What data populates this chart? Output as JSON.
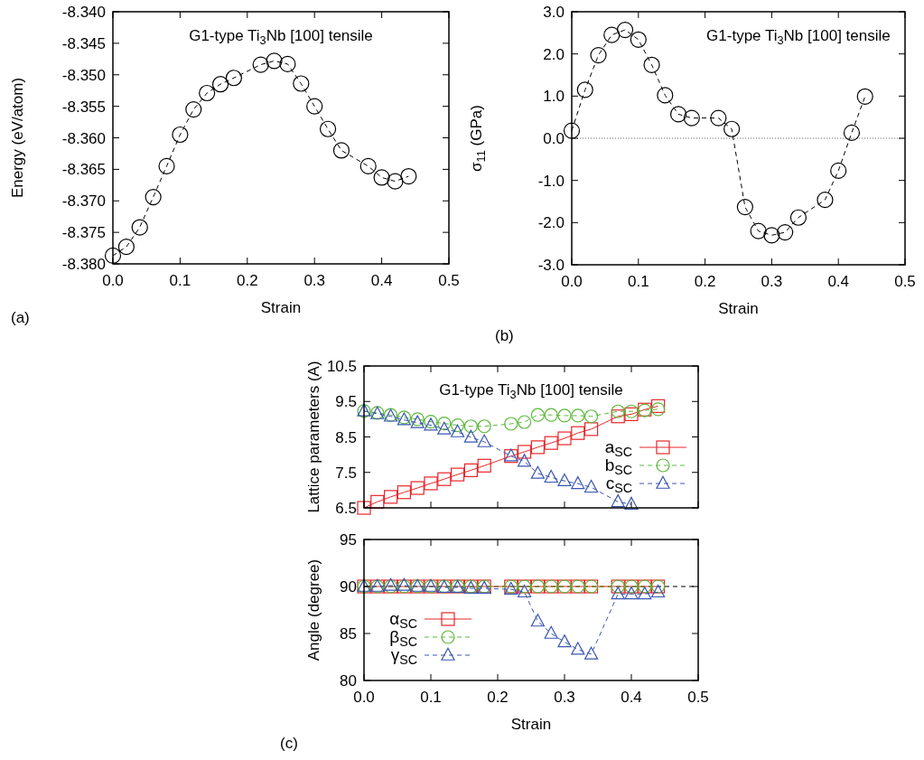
{
  "chart_data": [
    {
      "type": "line",
      "title": "G1-type Ti$_{3}$Nb [100] tensile",
      "xlabel": "Strain",
      "ylabel": "Energy (eV/atom)",
      "annotations": [
        "(a)"
      ],
      "marker": "circle",
      "line_style": "dashed",
      "xlim": [
        0,
        0.5
      ],
      "xticks": [
        {
          "value": 0,
          "label": "0.0"
        },
        0.1,
        0.2,
        0.3,
        0.4,
        0.5
      ],
      "ylim": [
        -8.38,
        -8.34
      ],
      "yticks": [
        {
          "value": -8.38,
          "label": "-8.380"
        },
        {
          "value": -8.375,
          "label": "-8.375"
        },
        {
          "value": -8.37,
          "label": "-8.370"
        },
        {
          "value": -8.365,
          "label": "-8.365"
        },
        {
          "value": -8.36,
          "label": "-8.360"
        },
        {
          "value": -8.355,
          "label": "-8.355"
        },
        {
          "value": -8.35,
          "label": "-8.350"
        },
        {
          "value": -8.345,
          "label": "-8.345"
        },
        {
          "value": -8.34,
          "label": "-8.340"
        }
      ],
      "x": [
        0,
        0.02,
        0.04,
        0.06,
        0.08,
        0.1,
        0.12,
        0.14,
        0.16,
        0.18,
        0.22,
        0.24,
        0.26,
        0.28,
        0.3,
        0.32,
        0.34,
        0.38,
        0.4,
        0.42,
        0.44
      ],
      "series": [
        {
          "color": "#000000",
          "values": [
            -8.3787,
            -8.3773,
            -8.3742,
            -8.3694,
            -8.3645,
            -8.3595,
            -8.3555,
            -8.3529,
            -8.3515,
            -8.3505,
            -8.3484,
            -8.3478,
            -8.3483,
            -8.3514,
            -8.355,
            -8.3586,
            -8.362,
            -8.3645,
            -8.3663,
            -8.3669,
            -8.3661
          ]
        }
      ]
    },
    {
      "type": "line",
      "title": "G1-type Ti$_{3}$Nb [100] tensile",
      "xlabel": "Strain",
      "ylabel": "σ$_{11}$ (GPa)",
      "annotations": [
        "(b)"
      ],
      "marker": "circle",
      "line_style": "dashed",
      "xlim": [
        0,
        0.5
      ],
      "xticks": [
        {
          "value": 0,
          "label": "0.0"
        },
        0.1,
        0.2,
        0.3,
        0.4,
        0.5
      ],
      "ylim": [
        -3,
        3
      ],
      "yticks": [
        {
          "value": -3,
          "label": "-3.0"
        },
        {
          "value": -2,
          "label": "-2.0"
        },
        {
          "value": -1,
          "label": "-1.0"
        },
        {
          "value": 0,
          "label": "0.0"
        },
        {
          "value": 1,
          "label": "1.0"
        },
        {
          "value": 2,
          "label": "2.0"
        },
        {
          "value": 3,
          "label": "3.0"
        }
      ],
      "ref_lines": [
        {
          "axis": "y",
          "value": 0,
          "color": "#000000",
          "line_style": "dotted"
        }
      ],
      "x": [
        0,
        0.02,
        0.04,
        0.06,
        0.08,
        0.1,
        0.12,
        0.14,
        0.16,
        0.18,
        0.22,
        0.24,
        0.26,
        0.28,
        0.3,
        0.32,
        0.34,
        0.38,
        0.4,
        0.42,
        0.44
      ],
      "series": [
        {
          "color": "#000000",
          "values": [
            0.18,
            1.15,
            1.97,
            2.45,
            2.57,
            2.34,
            1.74,
            1.02,
            0.57,
            0.48,
            0.48,
            0.22,
            -1.63,
            -2.2,
            -2.3,
            -2.23,
            -1.88,
            -1.46,
            -0.77,
            0.13,
            0.99
          ]
        }
      ]
    },
    {
      "type": "line",
      "title": "G1-type Ti$_{3}$Nb [100] tensile",
      "ylabel": "Lattice parameters (A)",
      "legend": "right",
      "tick_labels": "y",
      "xlim": [
        0,
        0.5
      ],
      "xticks": [
        {
          "value": 0,
          "label": null
        },
        {
          "value": 0.1,
          "label": null
        },
        {
          "value": 0.2,
          "label": null
        },
        {
          "value": 0.3,
          "label": null
        },
        {
          "value": 0.4,
          "label": null
        },
        {
          "value": 0.5,
          "label": null
        }
      ],
      "ylim": [
        6.5,
        10.5
      ],
      "yticks": [
        6.5,
        7.5,
        8.5,
        9.5,
        10.5
      ],
      "x": [
        0,
        0.02,
        0.04,
        0.06,
        0.08,
        0.1,
        0.12,
        0.14,
        0.16,
        0.18,
        0.22,
        0.24,
        0.26,
        0.28,
        0.3,
        0.32,
        0.34,
        0.38,
        0.4,
        0.42,
        0.44
      ],
      "series": [
        {
          "name": "a$_{SC}$",
          "color": "#e8262a",
          "marker": "square",
          "line_style": "solid",
          "values": [
            6.5,
            6.67,
            6.81,
            6.94,
            7.06,
            7.19,
            7.31,
            7.44,
            7.56,
            7.69,
            7.96,
            8.08,
            8.21,
            8.33,
            8.46,
            8.61,
            8.72,
            9.08,
            9.14,
            9.27,
            9.37
          ]
        },
        {
          "name": "b$_{SC}$",
          "color": "#5cb83c",
          "marker": "circle",
          "line_style": "dashed",
          "values": [
            9.23,
            9.18,
            9.12,
            9.05,
            9.0,
            8.93,
            8.88,
            8.83,
            8.8,
            8.8,
            8.87,
            8.92,
            9.12,
            9.12,
            9.1,
            9.1,
            9.08,
            9.22,
            9.22,
            9.25,
            9.28
          ]
        },
        {
          "name": "c$_{SC}$",
          "color": "#3a56b0",
          "marker": "triangle",
          "line_style": "dashed",
          "x": [
            0,
            0.02,
            0.04,
            0.06,
            0.08,
            0.1,
            0.12,
            0.14,
            0.16,
            0.18,
            0.22,
            0.24,
            0.26,
            0.28,
            0.3,
            0.32,
            0.34,
            0.38,
            0.4
          ],
          "values": [
            9.23,
            9.15,
            9.08,
            8.98,
            8.9,
            8.83,
            8.72,
            8.64,
            8.49,
            8.36,
            7.96,
            7.81,
            7.47,
            7.36,
            7.26,
            7.18,
            7.08,
            6.67,
            6.6
          ]
        }
      ]
    },
    {
      "type": "line",
      "xlabel": "Strain",
      "ylabel": "Angle (degree)",
      "annotations": [
        "(c)"
      ],
      "legend": "left",
      "xlim": [
        0,
        0.5
      ],
      "xticks": [
        {
          "value": 0,
          "label": "0.0"
        },
        0.1,
        0.2,
        0.3,
        0.4,
        0.5
      ],
      "ylim": [
        80,
        95
      ],
      "yticks": [
        80,
        85,
        90,
        95
      ],
      "ref_lines": [
        {
          "axis": "y",
          "value": 90,
          "color": "#000000",
          "line_style": "dashed"
        }
      ],
      "x": [
        0,
        0.02,
        0.04,
        0.06,
        0.08,
        0.1,
        0.12,
        0.14,
        0.16,
        0.18,
        0.22,
        0.24,
        0.26,
        0.28,
        0.3,
        0.32,
        0.34,
        0.38,
        0.4,
        0.42,
        0.44
      ],
      "series": [
        {
          "name": "α$_{SC}$",
          "color": "#e8262a",
          "marker": "square",
          "line_style": "solid",
          "values": [
            90,
            90,
            90,
            90,
            90,
            90,
            90,
            90,
            90,
            90,
            90,
            90,
            90,
            90,
            90,
            90,
            90,
            90,
            90,
            90,
            90
          ]
        },
        {
          "name": "β$_{SC}$",
          "color": "#5cb83c",
          "marker": "circle",
          "line_style": "dashed",
          "values": [
            90,
            90,
            90,
            90,
            90,
            90,
            90,
            90,
            90,
            90,
            90,
            90,
            90,
            90,
            90,
            90,
            90,
            90,
            90,
            90,
            90
          ]
        },
        {
          "name": "γ$_{SC}$",
          "color": "#3a56b0",
          "marker": "triangle",
          "line_style": "dashed",
          "values": [
            90,
            90,
            90.1,
            90.1,
            90,
            90,
            89.9,
            89.9,
            89.8,
            89.8,
            89.7,
            89.4,
            86.3,
            85.0,
            84.1,
            83.3,
            82.8,
            89.2,
            89.2,
            89.2,
            89.4
          ]
        }
      ]
    }
  ]
}
